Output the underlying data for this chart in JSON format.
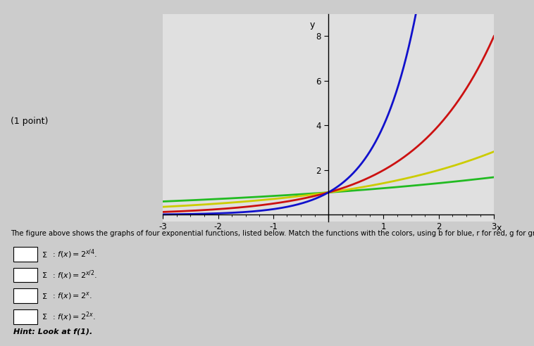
{
  "xlim": [
    -3,
    3
  ],
  "ylim": [
    -0.3,
    9
  ],
  "xticks": [
    -3,
    -2,
    -1,
    0,
    1,
    2,
    3
  ],
  "yticks": [
    2,
    4,
    6,
    8
  ],
  "xlabel": "x",
  "ylabel": "y",
  "functions": [
    {
      "label": "f(x)=2^(x/4)",
      "color": "#22bb22",
      "exponent_num": 1,
      "exponent_den": 4
    },
    {
      "label": "f(x)=2^(x/2)",
      "color": "#cccc00",
      "exponent_num": 1,
      "exponent_den": 2
    },
    {
      "label": "f(x)=2^x",
      "color": "#cc1111",
      "exponent_num": 1,
      "exponent_den": 1
    },
    {
      "label": "f(x)=2^(2x)",
      "color": "#1111cc",
      "exponent_num": 2,
      "exponent_den": 1
    }
  ],
  "clip_ymax": 9.0,
  "background_color": "#cccccc",
  "plot_bg_color": "#e0e0e0",
  "left_label": "(1 point)",
  "linewidth": 2.0,
  "func_labels": [
    "f(x) = 2^{x/4}.",
    "f(x) = 2^{x/2}.",
    "f(x) = 2^{x}.",
    "f(x) = 2^{2x}."
  ],
  "bottom_text": "The figure above shows the graphs of four exponential functions, listed below. Match the functions with the colors, using b for blue, r for red, g for green, and y for yellow.",
  "hint_text": "Hint: Look at f(1)."
}
